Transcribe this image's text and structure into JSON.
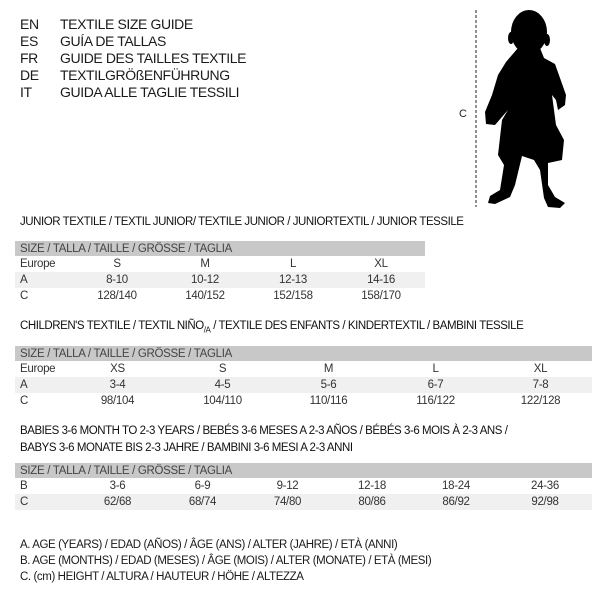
{
  "languages": [
    {
      "code": "EN",
      "text": "TEXTILE SIZE GUIDE"
    },
    {
      "code": "ES",
      "text": "GUÍA DE TALLAS"
    },
    {
      "code": "FR",
      "text": "GUIDE DES TAILLES TEXTILE"
    },
    {
      "code": "DE",
      "text": "TEXTILGRÖßENFÜHRUNG"
    },
    {
      "code": "IT",
      "text": "GUIDA ALLE TAGLIE TESSILI"
    }
  ],
  "figure": {
    "measure_label": "C",
    "icon": "child-silhouette"
  },
  "junior": {
    "title": "JUNIOR TEXTILE / TEXTIL JUNIOR/ TEXTILE JUNIOR / JUNIORTEXTIL / JUNIOR TESSILE",
    "header": "SIZE / TALLA / TAILLE / GRÖSSE / TAGLIA",
    "rows": [
      {
        "label": "Europe",
        "values": [
          "S",
          "M",
          "L",
          "XL"
        ]
      },
      {
        "label": "A",
        "values": [
          "8-10",
          "10-12",
          "12-13",
          "14-16"
        ]
      },
      {
        "label": "C",
        "values": [
          "128/140",
          "140/152",
          "152/158",
          "158/170"
        ]
      }
    ]
  },
  "children": {
    "title_pre": "CHILDREN'S TEXTILE / TEXTIL NIÑO",
    "title_sub": "/A",
    "title_post": " / TEXTILE DES ENFANTS / KINDERTEXTIL / BAMBINI TESSILE",
    "header": "SIZE / TALLA / TAILLE / GRÖSSE / TAGLIA",
    "rows": [
      {
        "label": "Europe",
        "values": [
          "XS",
          "S",
          "M",
          "L",
          "XL"
        ]
      },
      {
        "label": "A",
        "values": [
          "3-4",
          "4-5",
          "5-6",
          "6-7",
          "7-8"
        ]
      },
      {
        "label": "C",
        "values": [
          "98/104",
          "104/110",
          "110/116",
          "116/122",
          "122/128"
        ]
      }
    ]
  },
  "babies": {
    "title_line1": "BABIES 3-6 MONTH TO 2-3 YEARS / BEBÉS 3-6 MESES A 2-3 AÑOS / BÉBÉS 3-6 MOIS À 2-3 ANS /",
    "title_line2": "BABYS 3-6 MONATE BIS 2-3 JAHRE / BAMBINI 3-6 MESI A 2-3 ANNI",
    "header": "SIZE / TALLA / TAILLE / GRÖSSE / TAGLIA",
    "rows": [
      {
        "label": "B",
        "values": [
          "3-6",
          "6-9",
          "9-12",
          "12-18",
          "18-24",
          "24-36"
        ]
      },
      {
        "label": "C",
        "values": [
          "62/68",
          "68/74",
          "74/80",
          "80/86",
          "86/92",
          "92/98"
        ]
      }
    ]
  },
  "notes": [
    "A. AGE (YEARS) / EDAD (AÑOS) / ÂGE (ANS) / ALTER (JAHRE) / ETÀ (ANNI)",
    "B. AGE (MONTHS) / EDAD (MESES) / ÂGE (MOIS) / ALTER (MONATE) / ETÀ (MESI)",
    "C. (cm) HEIGHT / ALTURA / HAUTEUR / HÖHE / ALTEZZA"
  ]
}
